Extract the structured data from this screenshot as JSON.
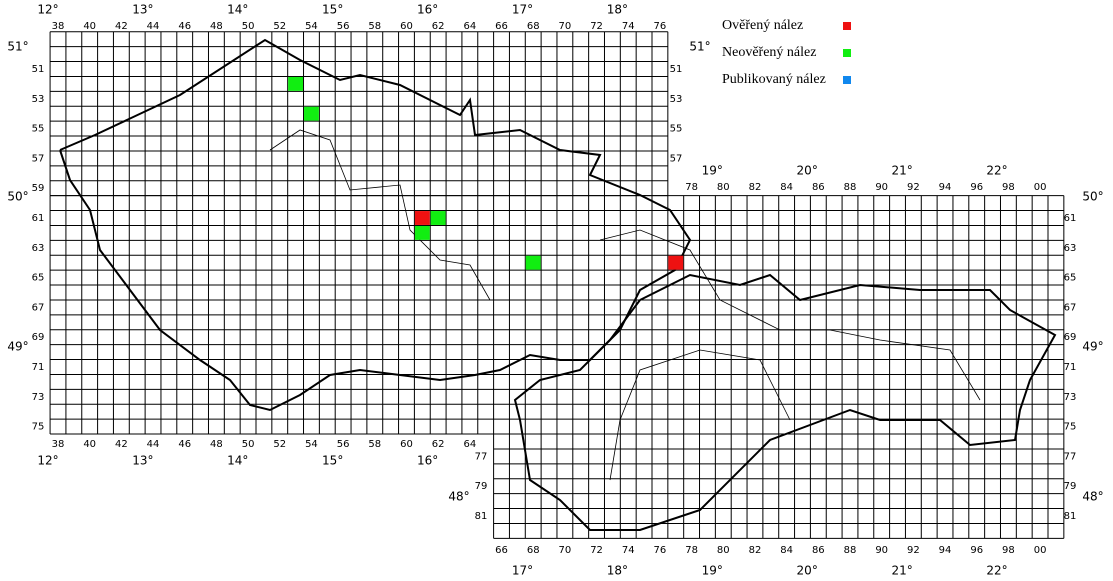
{
  "legend": [
    {
      "label": "Ověřený nález",
      "color": "#ee1111"
    },
    {
      "label": "Neověřený nález",
      "color": "#11ee11"
    },
    {
      "label": "Publikovaný nález",
      "color": "#1188ee"
    }
  ],
  "squares": [
    {
      "legend": 0,
      "col": 61,
      "row": 61
    },
    {
      "legend": 0,
      "col": 77,
      "row": 64
    },
    {
      "legend": 1,
      "col": 53,
      "row": 52
    },
    {
      "legend": 1,
      "col": 54,
      "row": 54
    },
    {
      "legend": 1,
      "col": 62,
      "row": 61
    },
    {
      "legend": 1,
      "col": 61,
      "row": 62
    },
    {
      "legend": 1,
      "col": 68,
      "row": 64
    }
  ],
  "col_labels": {
    "top": [
      38,
      40,
      42,
      44,
      46,
      48,
      50,
      52,
      54,
      56,
      58,
      60,
      62,
      64,
      66,
      68,
      70,
      72,
      74,
      76
    ],
    "top_sk": [
      78,
      80,
      82,
      84,
      86,
      88,
      90,
      92,
      94,
      96,
      98,
      {
        "value": 100,
        "label": "00"
      }
    ],
    "bottom_cz": [
      38,
      40,
      42,
      44,
      46,
      48,
      50,
      52,
      54,
      56,
      58,
      60,
      62,
      64
    ],
    "bottom_sk": [
      66,
      68,
      70,
      72,
      74,
      76,
      78,
      80,
      82,
      84,
      86,
      88,
      90,
      92,
      94,
      96,
      98,
      {
        "value": 100,
        "label": "00"
      }
    ]
  },
  "row_labels": {
    "left": [
      51,
      53,
      55,
      57,
      59,
      61,
      63,
      65,
      67,
      69,
      71,
      73,
      75
    ],
    "right_cz": [
      51,
      53,
      55,
      57
    ],
    "right_sk": [
      61,
      63,
      65,
      67,
      69,
      71,
      73,
      75,
      77,
      79,
      81
    ],
    "left_sk": [
      77,
      79,
      81
    ]
  },
  "lon_labels": {
    "top": [
      {
        "value": 12,
        "label": "12°"
      },
      {
        "value": 13,
        "label": "13°"
      },
      {
        "value": 14,
        "label": "14°"
      },
      {
        "value": 15,
        "label": "15°"
      },
      {
        "value": 16,
        "label": "16°"
      },
      {
        "value": 17,
        "label": "17°"
      },
      {
        "value": 18,
        "label": "18°"
      }
    ],
    "top_sk": [
      {
        "value": 19,
        "label": "19°"
      },
      {
        "value": 20,
        "label": "20°"
      },
      {
        "value": 21,
        "label": "21°"
      },
      {
        "value": 22,
        "label": "22°"
      }
    ],
    "bottom_cz": [
      {
        "value": 12,
        "label": "12°"
      },
      {
        "value": 13,
        "label": "13°"
      },
      {
        "value": 14,
        "label": "14°"
      },
      {
        "value": 15,
        "label": "15°"
      },
      {
        "value": 16,
        "label": "16°"
      }
    ],
    "bottom_sk": [
      {
        "value": 17,
        "label": "17°"
      },
      {
        "value": 18,
        "label": "18°"
      },
      {
        "value": 19,
        "label": "19°"
      },
      {
        "value": 20,
        "label": "20°"
      },
      {
        "value": 21,
        "label": "21°"
      },
      {
        "value": 22,
        "label": "22°"
      }
    ]
  },
  "lat_labels": {
    "left": [
      {
        "value": 51,
        "label": "51°"
      },
      {
        "value": 50,
        "label": "50°"
      },
      {
        "value": 49,
        "label": "49°"
      }
    ],
    "left_sk": [
      {
        "value": 48,
        "label": "48°"
      }
    ],
    "right_cz": [
      {
        "value": 51,
        "label": "51°"
      }
    ],
    "right_sk": [
      {
        "value": 50,
        "label": "50°"
      },
      {
        "value": 49,
        "label": "49°"
      },
      {
        "value": 48,
        "label": "48°"
      }
    ]
  }
}
